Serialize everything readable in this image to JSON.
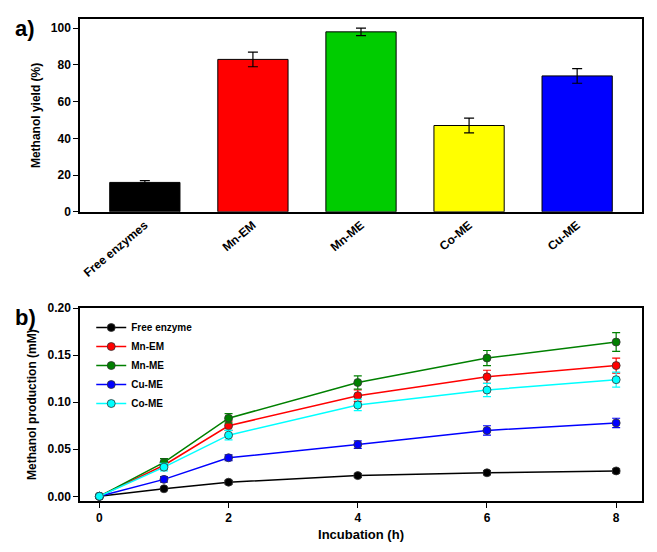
{
  "chart_data": [
    {
      "type": "bar",
      "title": "a)",
      "categories": [
        "Free enzymes",
        "Mn-EM",
        "Mn-ME",
        "Co-ME",
        "Cu-ME"
      ],
      "values": [
        16,
        83,
        98,
        47,
        74
      ],
      "errors": [
        1,
        4,
        2,
        4,
        4
      ],
      "colors": [
        "#000000",
        "#ff0000",
        "#00cc00",
        "#ffff00",
        "#0000ff"
      ],
      "y_label": "Methanol yield (%)",
      "ylim": [
        0,
        105
      ],
      "yticks": [
        0,
        20,
        40,
        60,
        80,
        100
      ],
      "grid": false
    },
    {
      "type": "line",
      "title": "b)",
      "x": [
        0,
        1,
        2,
        4,
        6,
        8
      ],
      "x_label": "Incubation (h)",
      "y_label": "Methanol production (mM)",
      "xlim": [
        -0.3,
        8.4
      ],
      "xticks": [
        0,
        2,
        4,
        6,
        8
      ],
      "ylim": [
        -0.005,
        0.2
      ],
      "yticks": [
        {
          "value": 0,
          "label": "0.00"
        },
        {
          "value": 0.05,
          "label": "0.05"
        },
        {
          "value": 0.1,
          "label": "0.10"
        },
        {
          "value": 0.15,
          "label": "0.15"
        },
        {
          "value": 0.2,
          "label": "0.20"
        }
      ],
      "grid": false,
      "legend": "upper left",
      "marker": "circle",
      "line_style": "solid",
      "series": [
        {
          "name": "Free enzyme",
          "color": "#000000",
          "values": [
            0,
            0.008,
            0.015,
            0.022,
            0.025,
            0.027
          ],
          "errors": [
            0,
            0.001,
            0.002,
            0.002,
            0.002,
            0.002
          ]
        },
        {
          "name": "Mn-EM",
          "color": "#ff0000",
          "values": [
            0,
            0.033,
            0.075,
            0.107,
            0.127,
            0.139
          ],
          "errors": [
            0,
            0.004,
            0.005,
            0.006,
            0.007,
            0.008
          ]
        },
        {
          "name": "Mn-ME",
          "color": "#008000",
          "values": [
            0,
            0.036,
            0.083,
            0.121,
            0.147,
            0.164
          ],
          "errors": [
            0,
            0.004,
            0.005,
            0.007,
            0.008,
            0.01
          ]
        },
        {
          "name": "Cu-ME",
          "color": "#0000ff",
          "values": [
            0,
            0.018,
            0.041,
            0.055,
            0.07,
            0.078
          ],
          "errors": [
            0,
            0.003,
            0.003,
            0.004,
            0.005,
            0.005
          ]
        },
        {
          "name": "Co-ME",
          "color": "#00ffff",
          "values": [
            0,
            0.031,
            0.065,
            0.097,
            0.113,
            0.124
          ],
          "errors": [
            0,
            0.004,
            0.005,
            0.006,
            0.007,
            0.008
          ]
        }
      ]
    }
  ]
}
